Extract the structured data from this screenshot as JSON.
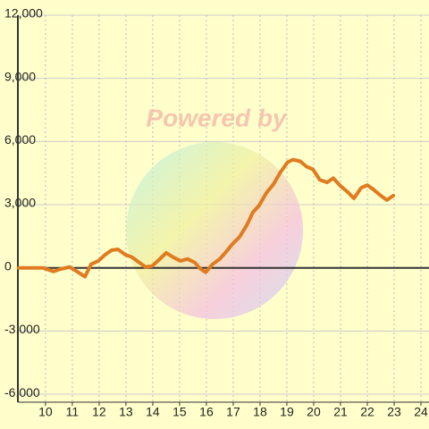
{
  "chart_data": {
    "type": "line",
    "watermark": "Powered by",
    "x": [
      9.0,
      9.9,
      10.3,
      10.5,
      10.9,
      11.17,
      11.47,
      11.7,
      11.97,
      12.23,
      12.47,
      12.7,
      12.97,
      13.23,
      13.5,
      13.73,
      13.97,
      14.23,
      14.5,
      14.77,
      15.03,
      15.3,
      15.57,
      15.77,
      15.97,
      16.23,
      16.5,
      16.7,
      16.97,
      17.23,
      17.5,
      17.73,
      17.97,
      18.23,
      18.5,
      18.77,
      19.03,
      19.23,
      19.5,
      19.73,
      19.97,
      20.23,
      20.5,
      20.73,
      21.0,
      21.27,
      21.5,
      21.77,
      22.0,
      22.23,
      22.5,
      22.73,
      22.97
    ],
    "series": [
      {
        "color": "#e07b20",
        "values": [
          0,
          0,
          -170,
          -80,
          40,
          -170,
          -420,
          170,
          330,
          630,
          840,
          880,
          630,
          500,
          250,
          40,
          80,
          380,
          710,
          500,
          330,
          420,
          250,
          -40,
          -210,
          170,
          420,
          710,
          1130,
          1460,
          2010,
          2630,
          2970,
          3550,
          3970,
          4560,
          5020,
          5140,
          5060,
          4810,
          4680,
          4180,
          4060,
          4260,
          3890,
          3600,
          3300,
          3800,
          3930,
          3720,
          3430,
          3220,
          3430
        ]
      }
    ],
    "xlim": [
      8.97,
      24.3
    ],
    "xticks": [
      10,
      11,
      12,
      13,
      14,
      15,
      16,
      17,
      18,
      19,
      20,
      21,
      22,
      23,
      24
    ],
    "ylim": [
      -6380,
      12000
    ],
    "yticks": [
      {
        "value": -6000,
        "label": "-6,000"
      },
      {
        "value": -3000,
        "label": "-3,000"
      },
      0,
      {
        "value": 3000,
        "label": "3,000"
      },
      {
        "value": 6000,
        "label": "6,000"
      },
      {
        "value": 9000,
        "label": "9,000"
      },
      {
        "value": 12000,
        "label": "12,000"
      }
    ],
    "grid": true
  }
}
